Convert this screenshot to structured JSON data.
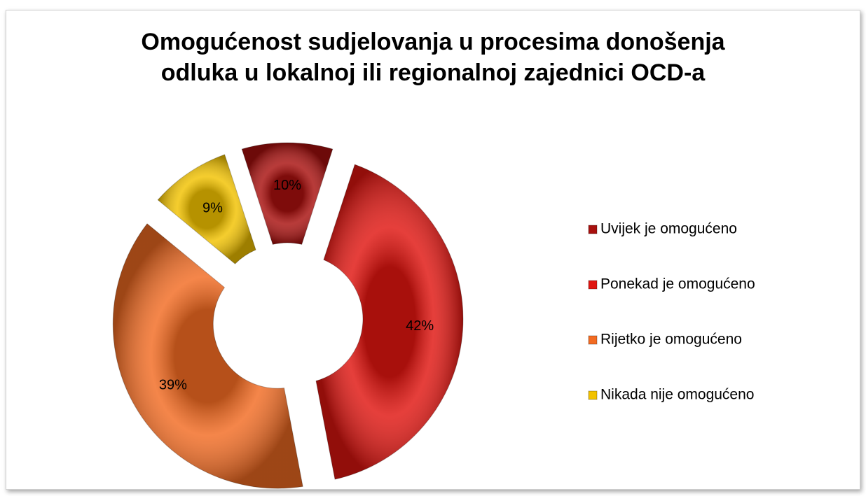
{
  "chart_data": {
    "type": "doughnut",
    "title": "Omogućenost sudjelovanja u procesima donošenja odluka u lokalnoj ili regionalnoj zajednici OCD-a",
    "categories": [
      "Uvijek je omogućeno",
      "Ponekad je omogućeno",
      "Rijetko je omogućeno",
      "Nikada nije omogućeno"
    ],
    "values": [
      10,
      42,
      39,
      9
    ],
    "value_labels": [
      "10%",
      "42%",
      "39%",
      "9%"
    ],
    "colors": [
      "#a8100e",
      "#e01510",
      "#f26b22",
      "#f2c200"
    ],
    "legend": "right"
  }
}
